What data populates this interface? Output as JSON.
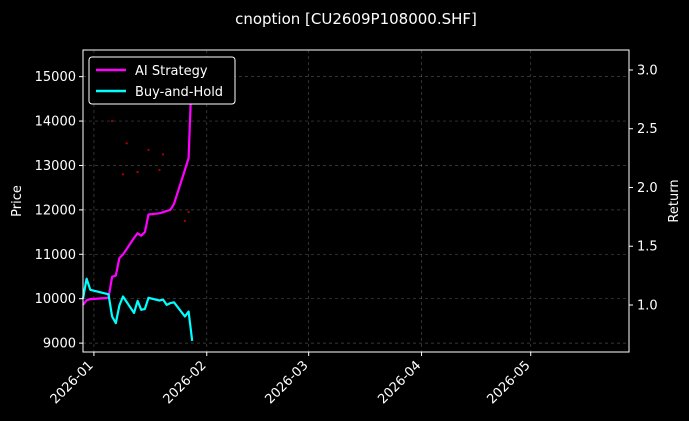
{
  "chart_data": {
    "type": "line",
    "title": "cnoption [CU2609P108000.SHF]",
    "xlabel": "",
    "ylabel_left": "Price",
    "ylabel_right": "Return",
    "x_ticks": [
      "2026-01",
      "2026-02",
      "2026-03",
      "2026-04",
      "2026-05"
    ],
    "y_left_ticks": [
      9000,
      10000,
      11000,
      12000,
      13000,
      14000,
      15000
    ],
    "y_right_ticks": [
      1.0,
      1.5,
      2.0,
      2.5,
      3.0
    ],
    "xlim": [
      "2025-12-29",
      "2026-05-28"
    ],
    "ylim_left": [
      8800,
      15600
    ],
    "ylim_right": [
      0.6,
      3.17
    ],
    "grid": true,
    "legend_position": "top-left",
    "series": [
      {
        "name": "AI Strategy",
        "axis": "right",
        "color": "#ff00ff",
        "points": [
          [
            "2025-12-29",
            1.0
          ],
          [
            "2025-12-30",
            1.04
          ],
          [
            "2025-12-31",
            1.05
          ],
          [
            "2026-01-05",
            1.06
          ],
          [
            "2026-01-06",
            1.24
          ],
          [
            "2026-01-07",
            1.25
          ],
          [
            "2026-01-08",
            1.4
          ],
          [
            "2026-01-09",
            1.43
          ],
          [
            "2026-01-12",
            1.57
          ],
          [
            "2026-01-13",
            1.61
          ],
          [
            "2026-01-14",
            1.59
          ],
          [
            "2026-01-15",
            1.62
          ],
          [
            "2026-01-16",
            1.77
          ],
          [
            "2026-01-19",
            1.78
          ],
          [
            "2026-01-20",
            1.79
          ],
          [
            "2026-01-21",
            1.8
          ],
          [
            "2026-01-22",
            1.81
          ],
          [
            "2026-01-23",
            1.86
          ],
          [
            "2026-01-26",
            2.15
          ],
          [
            "2026-01-27",
            2.25
          ],
          [
            "2026-01-28",
            3.07
          ]
        ]
      },
      {
        "name": "Buy-and-Hold",
        "axis": "left",
        "color": "#00ffff",
        "points": [
          [
            "2025-12-29",
            10000
          ],
          [
            "2025-12-30",
            10450
          ],
          [
            "2025-12-31",
            10200
          ],
          [
            "2026-01-05",
            10100
          ],
          [
            "2026-01-06",
            9600
          ],
          [
            "2026-01-07",
            9450
          ],
          [
            "2026-01-08",
            9850
          ],
          [
            "2026-01-09",
            10050
          ],
          [
            "2026-01-12",
            9680
          ],
          [
            "2026-01-13",
            9950
          ],
          [
            "2026-01-14",
            9750
          ],
          [
            "2026-01-15",
            9770
          ],
          [
            "2026-01-16",
            10020
          ],
          [
            "2026-01-19",
            9960
          ],
          [
            "2026-01-20",
            9980
          ],
          [
            "2026-01-21",
            9860
          ],
          [
            "2026-01-22",
            9900
          ],
          [
            "2026-01-23",
            9920
          ],
          [
            "2026-01-26",
            9600
          ],
          [
            "2026-01-27",
            9710
          ],
          [
            "2026-01-28",
            9050
          ]
        ]
      }
    ],
    "scatter_markers": {
      "color": "#a00000",
      "axis": "left",
      "points": [
        [
          "2026-01-06",
          14000
        ],
        [
          "2026-01-09",
          12800
        ],
        [
          "2026-01-10",
          13500
        ],
        [
          "2026-01-13",
          12850
        ],
        [
          "2026-01-16",
          13350
        ],
        [
          "2026-01-19",
          12900
        ],
        [
          "2026-01-20",
          13250
        ],
        [
          "2026-01-26",
          11750
        ],
        [
          "2026-01-27",
          11950
        ]
      ]
    }
  }
}
